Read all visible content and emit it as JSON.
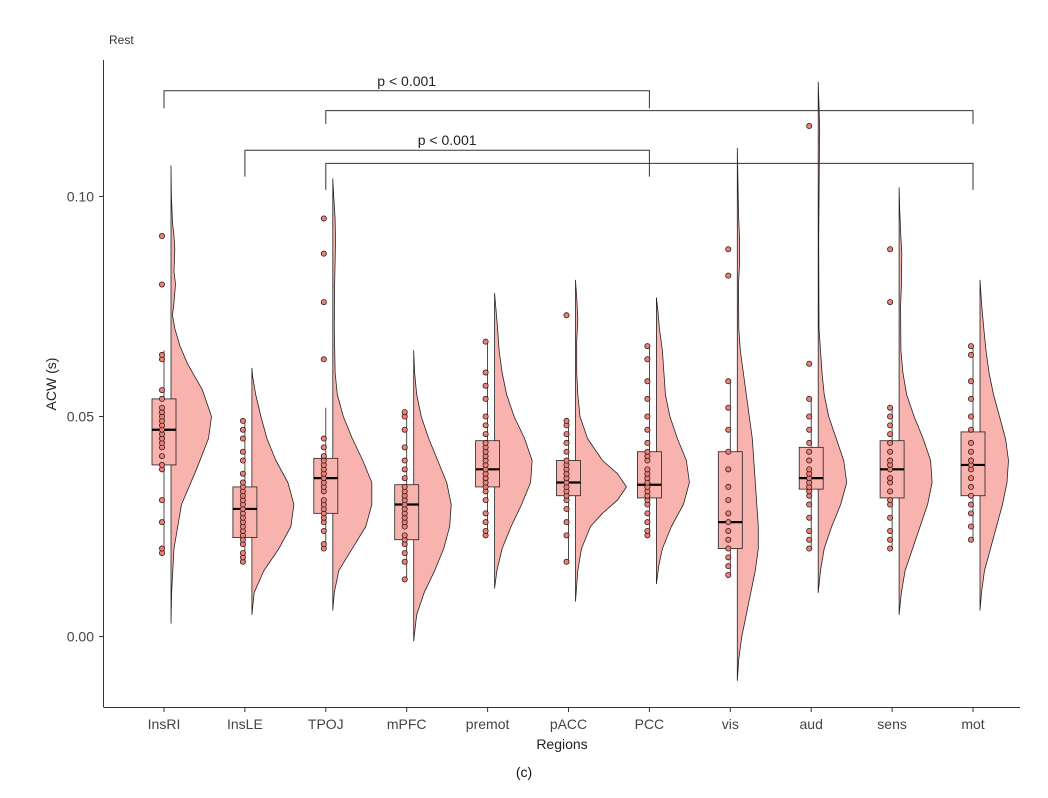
{
  "chart_data": {
    "type": "raincloud",
    "title": "Rest",
    "xlabel": "Regions",
    "ylabel": "ACW (s)",
    "caption": "(c)",
    "ylim": [
      -0.016,
      0.131
    ],
    "yticks": [
      0.0,
      0.05,
      0.1
    ],
    "ytick_labels": [
      "0.00",
      "0.05",
      "0.10"
    ],
    "grid": false,
    "fill_color": "#f8b3ae",
    "point_color": "#e8837c",
    "stroke_color": "#222222",
    "categories": [
      "InsRI",
      "InsLE",
      "TPOJ",
      "mPFC",
      "premot",
      "pACC",
      "PCC",
      "vis",
      "aud",
      "sens",
      "mot"
    ],
    "series": [
      {
        "name": "InsRI",
        "q1": 0.039,
        "median": 0.047,
        "q3": 0.054,
        "whisker_low": 0.019,
        "whisker_high": 0.065,
        "points": [
          0.019,
          0.02,
          0.026,
          0.031,
          0.038,
          0.039,
          0.041,
          0.043,
          0.044,
          0.045,
          0.046,
          0.047,
          0.048,
          0.049,
          0.05,
          0.051,
          0.052,
          0.054,
          0.056,
          0.063,
          0.064,
          0.08,
          0.091
        ],
        "density": [
          [
            0.003,
            0
          ],
          [
            0.01,
            0.4
          ],
          [
            0.02,
            2
          ],
          [
            0.03,
            7
          ],
          [
            0.038,
            17
          ],
          [
            0.045,
            25
          ],
          [
            0.05,
            27
          ],
          [
            0.056,
            21
          ],
          [
            0.062,
            11
          ],
          [
            0.066,
            6
          ],
          [
            0.07,
            2.5
          ],
          [
            0.073,
            1
          ],
          [
            0.076,
            2
          ],
          [
            0.08,
            3
          ],
          [
            0.083,
            2
          ],
          [
            0.088,
            2.5
          ],
          [
            0.091,
            2
          ],
          [
            0.094,
            1
          ],
          [
            0.1,
            0.3
          ],
          [
            0.107,
            0
          ]
        ]
      },
      {
        "name": "InsLE",
        "q1": 0.0225,
        "median": 0.029,
        "q3": 0.034,
        "whisker_low": 0.017,
        "whisker_high": 0.049,
        "points": [
          0.017,
          0.018,
          0.019,
          0.021,
          0.022,
          0.023,
          0.024,
          0.025,
          0.026,
          0.027,
          0.028,
          0.029,
          0.03,
          0.031,
          0.032,
          0.033,
          0.034,
          0.035,
          0.037,
          0.04,
          0.042,
          0.045,
          0.047,
          0.049
        ],
        "density": [
          [
            0.005,
            0
          ],
          [
            0.01,
            1.5
          ],
          [
            0.015,
            8
          ],
          [
            0.02,
            18
          ],
          [
            0.025,
            26
          ],
          [
            0.03,
            28
          ],
          [
            0.035,
            24
          ],
          [
            0.04,
            16
          ],
          [
            0.045,
            10
          ],
          [
            0.05,
            6
          ],
          [
            0.055,
            2.5
          ],
          [
            0.059,
            0.5
          ],
          [
            0.061,
            0
          ]
        ]
      },
      {
        "name": "TPOJ",
        "q1": 0.028,
        "median": 0.036,
        "q3": 0.0405,
        "whisker_low": 0.02,
        "whisker_high": 0.052,
        "points": [
          0.02,
          0.021,
          0.024,
          0.026,
          0.027,
          0.028,
          0.029,
          0.03,
          0.031,
          0.033,
          0.034,
          0.035,
          0.036,
          0.037,
          0.038,
          0.039,
          0.04,
          0.041,
          0.043,
          0.045,
          0.063,
          0.076,
          0.087,
          0.095
        ],
        "density": [
          [
            0.006,
            0
          ],
          [
            0.01,
            1
          ],
          [
            0.015,
            4
          ],
          [
            0.02,
            13
          ],
          [
            0.025,
            22
          ],
          [
            0.03,
            26
          ],
          [
            0.035,
            26
          ],
          [
            0.04,
            20
          ],
          [
            0.045,
            13
          ],
          [
            0.05,
            7
          ],
          [
            0.055,
            3
          ],
          [
            0.06,
            1.5
          ],
          [
            0.07,
            1
          ],
          [
            0.08,
            1.2
          ],
          [
            0.085,
            1.5
          ],
          [
            0.09,
            1.8
          ],
          [
            0.095,
            1.5
          ],
          [
            0.1,
            0.6
          ],
          [
            0.104,
            0
          ]
        ]
      },
      {
        "name": "mPFC",
        "q1": 0.022,
        "median": 0.03,
        "q3": 0.0345,
        "whisker_low": 0.013,
        "whisker_high": 0.051,
        "points": [
          0.013,
          0.017,
          0.019,
          0.021,
          0.022,
          0.023,
          0.025,
          0.026,
          0.027,
          0.028,
          0.029,
          0.03,
          0.031,
          0.032,
          0.033,
          0.034,
          0.036,
          0.038,
          0.04,
          0.043,
          0.047,
          0.05,
          0.051
        ],
        "density": [
          [
            -0.001,
            0
          ],
          [
            0.005,
            2
          ],
          [
            0.01,
            7
          ],
          [
            0.015,
            14
          ],
          [
            0.02,
            20
          ],
          [
            0.025,
            24
          ],
          [
            0.03,
            25
          ],
          [
            0.035,
            22
          ],
          [
            0.04,
            16
          ],
          [
            0.045,
            10
          ],
          [
            0.05,
            5
          ],
          [
            0.055,
            2
          ],
          [
            0.06,
            0.6
          ],
          [
            0.065,
            0
          ]
        ]
      },
      {
        "name": "premot",
        "q1": 0.034,
        "median": 0.038,
        "q3": 0.0445,
        "whisker_low": 0.023,
        "whisker_high": 0.067,
        "points": [
          0.023,
          0.024,
          0.026,
          0.028,
          0.031,
          0.033,
          0.034,
          0.035,
          0.036,
          0.037,
          0.038,
          0.039,
          0.04,
          0.041,
          0.042,
          0.043,
          0.044,
          0.046,
          0.048,
          0.05,
          0.054,
          0.057,
          0.06,
          0.067
        ],
        "density": [
          [
            0.011,
            0
          ],
          [
            0.015,
            1.5
          ],
          [
            0.02,
            5
          ],
          [
            0.025,
            11
          ],
          [
            0.03,
            18
          ],
          [
            0.035,
            24
          ],
          [
            0.04,
            25
          ],
          [
            0.045,
            20
          ],
          [
            0.05,
            13
          ],
          [
            0.055,
            8
          ],
          [
            0.06,
            5
          ],
          [
            0.065,
            3
          ],
          [
            0.07,
            2
          ],
          [
            0.074,
            1
          ],
          [
            0.078,
            0
          ]
        ]
      },
      {
        "name": "pACC",
        "q1": 0.032,
        "median": 0.035,
        "q3": 0.04,
        "whisker_low": 0.017,
        "whisker_high": 0.049,
        "points": [
          0.017,
          0.023,
          0.026,
          0.029,
          0.031,
          0.032,
          0.033,
          0.034,
          0.035,
          0.036,
          0.037,
          0.038,
          0.039,
          0.04,
          0.042,
          0.044,
          0.046,
          0.048,
          0.049,
          0.073
        ],
        "density": [
          [
            0.008,
            0
          ],
          [
            0.015,
            1.5
          ],
          [
            0.02,
            4
          ],
          [
            0.025,
            10
          ],
          [
            0.028,
            18
          ],
          [
            0.031,
            28
          ],
          [
            0.034,
            34
          ],
          [
            0.037,
            28
          ],
          [
            0.04,
            18
          ],
          [
            0.045,
            8
          ],
          [
            0.05,
            3
          ],
          [
            0.055,
            1.5
          ],
          [
            0.06,
            0.8
          ],
          [
            0.067,
            0.8
          ],
          [
            0.072,
            1.5
          ],
          [
            0.076,
            1
          ],
          [
            0.081,
            0
          ]
        ]
      },
      {
        "name": "PCC",
        "q1": 0.0315,
        "median": 0.0345,
        "q3": 0.042,
        "whisker_low": 0.023,
        "whisker_high": 0.066,
        "points": [
          0.023,
          0.024,
          0.026,
          0.028,
          0.03,
          0.031,
          0.032,
          0.033,
          0.034,
          0.035,
          0.036,
          0.037,
          0.038,
          0.04,
          0.041,
          0.042,
          0.044,
          0.047,
          0.05,
          0.054,
          0.058,
          0.063,
          0.066
        ],
        "density": [
          [
            0.012,
            0
          ],
          [
            0.016,
            1.5
          ],
          [
            0.02,
            4
          ],
          [
            0.025,
            10
          ],
          [
            0.03,
            18
          ],
          [
            0.035,
            22
          ],
          [
            0.04,
            20
          ],
          [
            0.045,
            14
          ],
          [
            0.05,
            9
          ],
          [
            0.055,
            6
          ],
          [
            0.06,
            5
          ],
          [
            0.065,
            4
          ],
          [
            0.07,
            2
          ],
          [
            0.074,
            1
          ],
          [
            0.077,
            0
          ]
        ]
      },
      {
        "name": "vis",
        "q1": 0.02,
        "median": 0.026,
        "q3": 0.042,
        "whisker_low": 0.014,
        "whisker_high": 0.058,
        "points": [
          0.014,
          0.016,
          0.018,
          0.02,
          0.022,
          0.024,
          0.026,
          0.028,
          0.031,
          0.034,
          0.038,
          0.042,
          0.047,
          0.052,
          0.058,
          0.082,
          0.088
        ],
        "density": [
          [
            -0.01,
            0
          ],
          [
            -0.005,
            1
          ],
          [
            0.0,
            3
          ],
          [
            0.005,
            6
          ],
          [
            0.01,
            9
          ],
          [
            0.015,
            12
          ],
          [
            0.02,
            14
          ],
          [
            0.025,
            14
          ],
          [
            0.03,
            13
          ],
          [
            0.035,
            12
          ],
          [
            0.04,
            11
          ],
          [
            0.045,
            10
          ],
          [
            0.05,
            8
          ],
          [
            0.055,
            6
          ],
          [
            0.06,
            4
          ],
          [
            0.065,
            2
          ],
          [
            0.07,
            1
          ],
          [
            0.08,
            0.8
          ],
          [
            0.085,
            1.5
          ],
          [
            0.09,
            1.5
          ],
          [
            0.096,
            0.8
          ],
          [
            0.105,
            0.3
          ],
          [
            0.111,
            0
          ]
        ]
      },
      {
        "name": "aud",
        "q1": 0.0335,
        "median": 0.036,
        "q3": 0.043,
        "whisker_low": 0.02,
        "whisker_high": 0.054,
        "points": [
          0.02,
          0.022,
          0.024,
          0.027,
          0.03,
          0.032,
          0.033,
          0.034,
          0.035,
          0.036,
          0.037,
          0.038,
          0.04,
          0.042,
          0.044,
          0.047,
          0.05,
          0.054,
          0.062,
          0.116
        ],
        "density": [
          [
            0.01,
            0
          ],
          [
            0.015,
            1.5
          ],
          [
            0.02,
            4
          ],
          [
            0.025,
            9
          ],
          [
            0.03,
            15
          ],
          [
            0.035,
            19
          ],
          [
            0.04,
            17
          ],
          [
            0.045,
            12
          ],
          [
            0.05,
            7
          ],
          [
            0.055,
            4
          ],
          [
            0.06,
            2.5
          ],
          [
            0.065,
            1.5
          ],
          [
            0.07,
            0.5
          ],
          [
            0.09,
            0.3
          ],
          [
            0.11,
            0.8
          ],
          [
            0.115,
            1
          ],
          [
            0.12,
            0.6
          ],
          [
            0.126,
            0
          ]
        ]
      },
      {
        "name": "sens",
        "q1": 0.0315,
        "median": 0.038,
        "q3": 0.0445,
        "whisker_low": 0.02,
        "whisker_high": 0.052,
        "points": [
          0.02,
          0.022,
          0.024,
          0.027,
          0.03,
          0.031,
          0.033,
          0.035,
          0.036,
          0.038,
          0.039,
          0.04,
          0.042,
          0.044,
          0.046,
          0.048,
          0.05,
          0.052,
          0.076,
          0.088
        ],
        "density": [
          [
            0.005,
            0
          ],
          [
            0.01,
            1.5
          ],
          [
            0.015,
            4
          ],
          [
            0.02,
            9
          ],
          [
            0.025,
            14
          ],
          [
            0.03,
            19
          ],
          [
            0.035,
            22
          ],
          [
            0.04,
            21
          ],
          [
            0.045,
            16
          ],
          [
            0.05,
            10
          ],
          [
            0.055,
            5
          ],
          [
            0.06,
            2.5
          ],
          [
            0.065,
            1.2
          ],
          [
            0.075,
            1
          ],
          [
            0.08,
            1.5
          ],
          [
            0.087,
            1.8
          ],
          [
            0.092,
            1
          ],
          [
            0.097,
            0.4
          ],
          [
            0.102,
            0
          ]
        ]
      },
      {
        "name": "mot",
        "q1": 0.032,
        "median": 0.039,
        "q3": 0.0465,
        "whisker_low": 0.022,
        "whisker_high": 0.066,
        "points": [
          0.022,
          0.025,
          0.028,
          0.03,
          0.032,
          0.034,
          0.036,
          0.038,
          0.039,
          0.04,
          0.042,
          0.044,
          0.047,
          0.05,
          0.054,
          0.058,
          0.064,
          0.066
        ],
        "density": [
          [
            0.006,
            0
          ],
          [
            0.01,
            1
          ],
          [
            0.015,
            3
          ],
          [
            0.02,
            7
          ],
          [
            0.025,
            11
          ],
          [
            0.03,
            15
          ],
          [
            0.035,
            18
          ],
          [
            0.04,
            19
          ],
          [
            0.045,
            17
          ],
          [
            0.05,
            13
          ],
          [
            0.055,
            9
          ],
          [
            0.06,
            6
          ],
          [
            0.065,
            4
          ],
          [
            0.07,
            2.5
          ],
          [
            0.075,
            1.2
          ],
          [
            0.081,
            0
          ]
        ]
      }
    ],
    "significance_brackets": [
      {
        "from": "InsRI",
        "to": "PCC",
        "y": 0.124,
        "tick_down": 0.004,
        "label": "p < 0.001"
      },
      {
        "from": "TPOJ",
        "to": "mot",
        "y": 0.1195,
        "tick_down": 0.003,
        "label": ""
      },
      {
        "from": "InsLE",
        "to": "PCC",
        "y": 0.1105,
        "tick_down": 0.006,
        "label": "p < 0.001"
      },
      {
        "from": "TPOJ",
        "to": "mot",
        "y": 0.1075,
        "tick_down": 0.006,
        "label": ""
      }
    ]
  }
}
